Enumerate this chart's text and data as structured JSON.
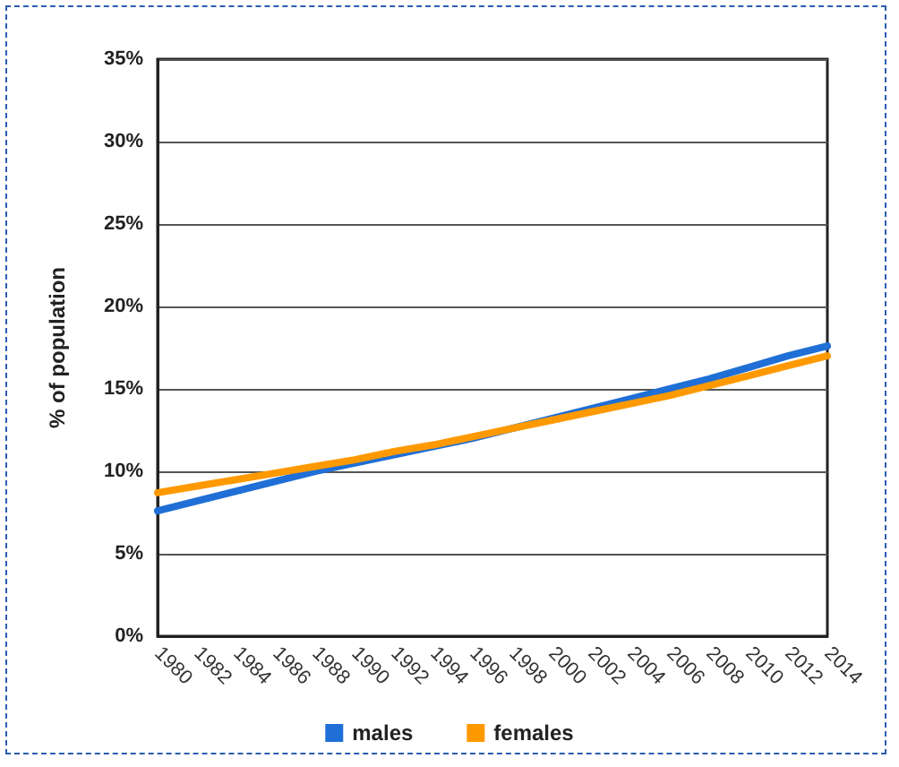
{
  "chart_data": {
    "type": "line",
    "ylabel": "% of population",
    "categories": [
      "1980",
      "1982",
      "1984",
      "1986",
      "1988",
      "1990",
      "1992",
      "1994",
      "1996",
      "1998",
      "2000",
      "2002",
      "2004",
      "2006",
      "2008",
      "2010",
      "2012",
      "2014"
    ],
    "series": [
      {
        "name": "males",
        "color": "#1f6fd6",
        "values": [
          7.6,
          8.2,
          8.8,
          9.4,
          10.0,
          10.5,
          11.0,
          11.5,
          12.0,
          12.6,
          13.2,
          13.8,
          14.4,
          15.0,
          15.6,
          16.3,
          17.0,
          17.6
        ]
      },
      {
        "name": "females",
        "color": "#ff9900",
        "values": [
          8.7,
          9.1,
          9.5,
          9.9,
          10.3,
          10.7,
          11.2,
          11.6,
          12.1,
          12.6,
          13.1,
          13.6,
          14.1,
          14.6,
          15.2,
          15.8,
          16.4,
          17.0
        ]
      }
    ],
    "ylim": [
      0,
      35
    ],
    "yticks": [
      {
        "value": 0,
        "label": "0%"
      },
      {
        "value": 5,
        "label": "5%"
      },
      {
        "value": 10,
        "label": "10%"
      },
      {
        "value": 15,
        "label": "15%"
      },
      {
        "value": 20,
        "label": "20%"
      },
      {
        "value": 25,
        "label": "25%"
      },
      {
        "value": 30,
        "label": "30%"
      },
      {
        "value": 35,
        "label": "35%"
      }
    ],
    "grid": "y",
    "legend": "bottom",
    "marker": "none",
    "line_style": "solid"
  }
}
